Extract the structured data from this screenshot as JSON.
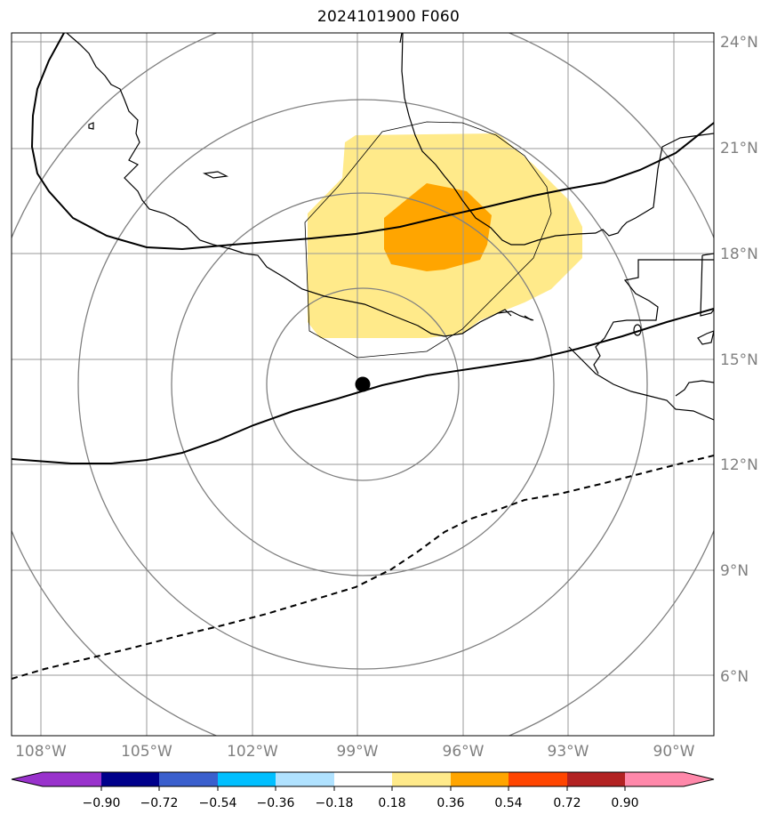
{
  "title": "2024101900 F060",
  "map": {
    "lat_labels": [
      "24°N",
      "21°N",
      "18°N",
      "15°N",
      "12°N",
      "9°N",
      "6°N"
    ],
    "lon_labels": [
      "108°W",
      "105°W",
      "102°W",
      "99°W",
      "96°W",
      "93°W",
      "90°W"
    ],
    "grid_line_color": "#999999",
    "range_ring_color": "#808080",
    "center_marker": {
      "lon": -98.85,
      "lat": 14.3,
      "label": ""
    },
    "fields": [
      {
        "name": "",
        "level": 0.18,
        "color": "#ffea8a"
      },
      {
        "name": "",
        "level": 0.36,
        "color": "#ffa500"
      }
    ],
    "tracks": [
      {
        "style": "solid",
        "color": "#000000"
      },
      {
        "style": "solid",
        "color": "#000000"
      },
      {
        "style": "dashed",
        "color": "#000000"
      }
    ]
  },
  "colorbar": {
    "tick_labels": [
      "−0.90",
      "−0.72",
      "−0.54",
      "−0.36",
      "−0.18",
      "0.18",
      "0.36",
      "0.54",
      "0.72",
      "0.90"
    ],
    "colors": [
      "#9932cc",
      "#00008b",
      "#3a5fcd",
      "#00bfff",
      "#b0e2ff",
      "#ffffff",
      "#ffea8a",
      "#ffa500",
      "#ff4500",
      "#b22222",
      "#ff88aa"
    ]
  }
}
